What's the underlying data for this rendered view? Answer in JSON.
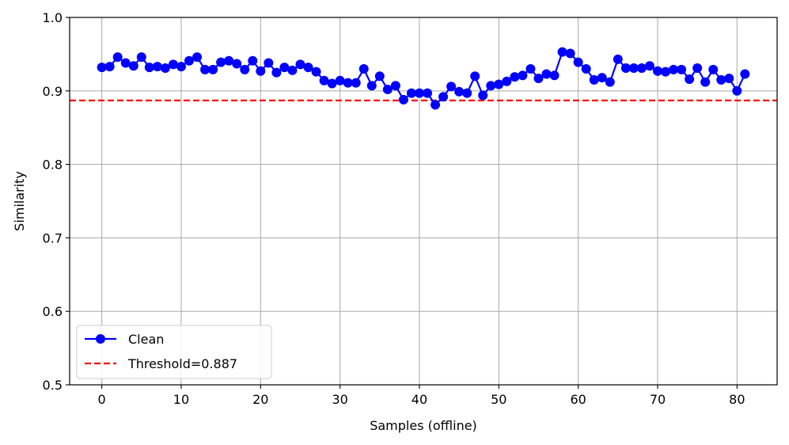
{
  "chart_data": {
    "type": "line",
    "title": "",
    "xlabel": "Samples (offline)",
    "ylabel": "Similarity",
    "xlim": [
      -4.05,
      85.05
    ],
    "ylim": [
      0.5,
      1.0
    ],
    "xticks": [
      0,
      10,
      20,
      30,
      40,
      50,
      60,
      70,
      80
    ],
    "yticks": [
      0.5,
      0.6,
      0.7,
      0.8,
      0.9,
      1.0
    ],
    "xtick_labels": [
      "0",
      "10",
      "20",
      "30",
      "40",
      "50",
      "60",
      "70",
      "80"
    ],
    "ytick_labels": [
      "0.5",
      "0.6",
      "0.7",
      "0.8",
      "0.9",
      "1.0"
    ],
    "grid": true,
    "legend_position": "lower-left",
    "series": [
      {
        "name": "Clean",
        "color": "#0000ff",
        "marker": "circle",
        "x": [
          0,
          1,
          2,
          3,
          4,
          5,
          6,
          7,
          8,
          9,
          10,
          11,
          12,
          13,
          14,
          15,
          16,
          17,
          18,
          19,
          20,
          21,
          22,
          23,
          24,
          25,
          26,
          27,
          28,
          29,
          30,
          31,
          32,
          33,
          34,
          35,
          36,
          37,
          38,
          39,
          40,
          41,
          42,
          43,
          44,
          45,
          46,
          47,
          48,
          49,
          50,
          51,
          52,
          53,
          54,
          55,
          56,
          57,
          58,
          59,
          60,
          61,
          62,
          63,
          64,
          65,
          66,
          67,
          68,
          69,
          70,
          71,
          72,
          73,
          74,
          75,
          76,
          77,
          78,
          79,
          80,
          81
        ],
        "y": [
          0.932,
          0.933,
          0.946,
          0.938,
          0.934,
          0.946,
          0.932,
          0.933,
          0.931,
          0.936,
          0.933,
          0.941,
          0.946,
          0.929,
          0.929,
          0.939,
          0.941,
          0.937,
          0.929,
          0.941,
          0.927,
          0.938,
          0.925,
          0.932,
          0.928,
          0.936,
          0.932,
          0.926,
          0.914,
          0.91,
          0.914,
          0.911,
          0.911,
          0.93,
          0.907,
          0.92,
          0.902,
          0.907,
          0.888,
          0.897,
          0.897,
          0.897,
          0.881,
          0.892,
          0.906,
          0.899,
          0.897,
          0.92,
          0.894,
          0.907,
          0.909,
          0.913,
          0.919,
          0.921,
          0.93,
          0.917,
          0.923,
          0.921,
          0.953,
          0.951,
          0.939,
          0.93,
          0.915,
          0.918,
          0.912,
          0.943,
          0.931,
          0.931,
          0.931,
          0.934,
          0.927,
          0.926,
          0.929,
          0.929,
          0.916,
          0.931,
          0.912,
          0.929,
          0.915,
          0.917,
          0.9,
          0.923
        ]
      },
      {
        "name": "Threshold=0.887",
        "color": "#ff0000",
        "style": "dashed",
        "constant_y": 0.887
      }
    ]
  }
}
